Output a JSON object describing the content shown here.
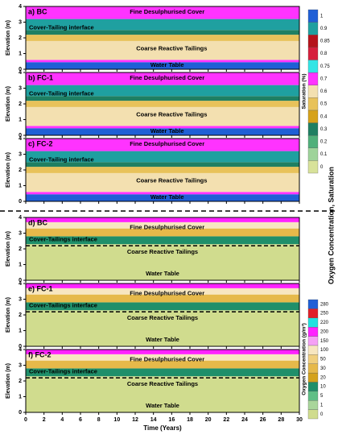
{
  "chart_data": [
    {
      "type": "band",
      "ylabel": "Elevation (m)",
      "panel_label": "a) BC",
      "cover_label": "Fine Desulphurised Cover",
      "interface_label": "Cover-Tailing interface",
      "tailings_label": "Coarse Reactive Tailings",
      "water_table_label": "Water Table",
      "colorbar": 0,
      "xlim": [
        0,
        30
      ],
      "xticks": [
        0,
        2,
        4,
        6,
        8,
        10,
        12,
        14,
        16,
        18,
        20,
        22,
        24,
        26,
        28,
        30
      ],
      "ylim": [
        0,
        4
      ],
      "yticks": [
        0,
        1,
        2,
        3,
        4
      ],
      "bands": [
        {
          "from": 0,
          "to": 0.45,
          "value": 1
        },
        {
          "from": 0.45,
          "to": 0.6,
          "value": 0.7
        },
        {
          "from": 0.6,
          "to": 1.8,
          "value": 0.6
        },
        {
          "from": 1.8,
          "to": 2.2,
          "value": 0.5
        },
        {
          "from": 2.2,
          "to": 2.5,
          "value": 0.3
        },
        {
          "from": 2.5,
          "to": 3.2,
          "value": 0.9
        },
        {
          "from": 3.2,
          "to": 4,
          "value": 0.7
        }
      ]
    },
    {
      "type": "band",
      "ylabel": "Elevation (m)",
      "panel_label": "b) FC-1",
      "cover_label": "Fine Desulphurised Cover",
      "interface_label": "Cover-Tailing interface",
      "tailings_label": "Coarse Reactive Tailings",
      "water_table_label": "Water Table",
      "colorbar": 0,
      "xlim": [
        0,
        30
      ],
      "xticks": [
        0,
        2,
        4,
        6,
        8,
        10,
        12,
        14,
        16,
        18,
        20,
        22,
        24,
        26,
        28,
        30
      ],
      "ylim": [
        0,
        4
      ],
      "yticks": [
        0,
        1,
        2,
        3,
        4
      ],
      "bands": [
        {
          "from": 0,
          "to": 0.45,
          "value": 1
        },
        {
          "from": 0.45,
          "to": 0.6,
          "value": 0.7
        },
        {
          "from": 0.6,
          "to": 1.8,
          "value": 0.6
        },
        {
          "from": 1.8,
          "to": 2.2,
          "value": 0.5
        },
        {
          "from": 2.2,
          "to": 2.5,
          "value": 0.3
        },
        {
          "from": 2.5,
          "to": 3.2,
          "value": 0.9
        },
        {
          "from": 3.2,
          "to": 4,
          "value": 0.7
        }
      ]
    },
    {
      "type": "band",
      "ylabel": "Elevation (m)",
      "panel_label": "c) FC-2",
      "cover_label": "Fine Desulphurised Cover",
      "interface_label": "Cover-Tailing interface",
      "tailings_label": "Coarse Reactive Tailings",
      "water_table_label": "Water Table",
      "colorbar": 0,
      "xlim": [
        0,
        30
      ],
      "xticks": [
        0,
        2,
        4,
        6,
        8,
        10,
        12,
        14,
        16,
        18,
        20,
        22,
        24,
        26,
        28,
        30
      ],
      "ylim": [
        0,
        4
      ],
      "yticks": [
        0,
        1,
        2,
        3,
        4
      ],
      "bands": [
        {
          "from": 0,
          "to": 0.45,
          "value": 1
        },
        {
          "from": 0.45,
          "to": 0.6,
          "value": 0.7
        },
        {
          "from": 0.6,
          "to": 1.8,
          "value": 0.6
        },
        {
          "from": 1.8,
          "to": 2.2,
          "value": 0.5
        },
        {
          "from": 2.2,
          "to": 2.5,
          "value": 0.3
        },
        {
          "from": 2.5,
          "to": 3.2,
          "value": 0.9
        },
        {
          "from": 3.2,
          "to": 4,
          "value": 0.7
        }
      ]
    },
    {
      "type": "band",
      "ylabel": "Elevation (m)",
      "panel_label": "d) BC",
      "cover_label": "Fine Desulphurised Cover",
      "interface_label": "Cover-Tailings interface",
      "tailings_label": "Coarse Reactive Tailings",
      "water_table_label": "Water Table",
      "colorbar": 1,
      "interface_line": 2.2,
      "xlim": [
        0,
        30
      ],
      "xticks": [
        0,
        2,
        4,
        6,
        8,
        10,
        12,
        14,
        16,
        18,
        20,
        22,
        24,
        26,
        28,
        30
      ],
      "ylim": [
        0,
        4
      ],
      "yticks": [
        0,
        1,
        2,
        3,
        4
      ],
      "bands": [
        {
          "from": 0,
          "to": 2.3,
          "value": 0
        },
        {
          "from": 2.3,
          "to": 2.8,
          "value": 10
        },
        {
          "from": 2.8,
          "to": 3.3,
          "value": 30
        },
        {
          "from": 3.3,
          "to": 3.7,
          "value": 100
        },
        {
          "from": 3.7,
          "to": 4,
          "value": 200
        }
      ]
    },
    {
      "type": "band",
      "ylabel": "Elevation (m)",
      "panel_label": "e) FC-1",
      "cover_label": "Fine Desulphurised Cover",
      "interface_label": "Cover-Tailings interface",
      "tailings_label": "Coarse Reactive Tailings",
      "water_table_label": "Water Table",
      "colorbar": 1,
      "interface_line": 2.2,
      "xlim": [
        0,
        30
      ],
      "xticks": [
        0,
        2,
        4,
        6,
        8,
        10,
        12,
        14,
        16,
        18,
        20,
        22,
        24,
        26,
        28,
        30
      ],
      "ylim": [
        0,
        4
      ],
      "yticks": [
        0,
        1,
        2,
        3,
        4
      ],
      "bands": [
        {
          "from": 0,
          "to": 2.3,
          "value": 0
        },
        {
          "from": 2.3,
          "to": 2.8,
          "value": 10
        },
        {
          "from": 2.8,
          "to": 3.3,
          "value": 30
        },
        {
          "from": 3.3,
          "to": 3.7,
          "value": 100
        },
        {
          "from": 3.7,
          "to": 4,
          "value": 200
        }
      ]
    },
    {
      "type": "band",
      "ylabel": "Elevation (m)",
      "panel_label": "f) FC-2",
      "cover_label": "Fine Desulphurised Cover",
      "interface_label": "Cover-Tailings interface",
      "tailings_label": "Coarse Reactive Tailings",
      "water_table_label": "Water Table",
      "colorbar": 1,
      "interface_line": 2.2,
      "xlabel": "Time (Years)",
      "xlim": [
        0,
        30
      ],
      "xticks": [
        0,
        2,
        4,
        6,
        8,
        10,
        12,
        14,
        16,
        18,
        20,
        22,
        24,
        26,
        28,
        30
      ],
      "ylim": [
        0,
        4
      ],
      "yticks": [
        0,
        1,
        2,
        3,
        4
      ],
      "bands": [
        {
          "from": 0,
          "to": 2.3,
          "value": 0
        },
        {
          "from": 2.3,
          "to": 2.8,
          "value": 10
        },
        {
          "from": 2.8,
          "to": 3.3,
          "value": 30
        },
        {
          "from": 3.3,
          "to": 3.7,
          "value": 100
        },
        {
          "from": 3.7,
          "to": 4,
          "value": 200
        }
      ]
    }
  ],
  "colorbars": [
    {
      "title": "Saturation (%)",
      "levels": [
        0,
        0.1,
        0.2,
        0.3,
        0.4,
        0.5,
        0.6,
        0.7,
        0.75,
        0.8,
        0.85,
        0.9,
        1
      ],
      "colors": [
        "#d8e29a",
        "#9ed39a",
        "#4fb07a",
        "#1f7f62",
        "#d6a21a",
        "#e8c25a",
        "#f3e0b0",
        "#ff33ff",
        "#33e5e5",
        "#d61f3d",
        "#b5121b",
        "#1fa0a0",
        "#1f5fd6"
      ]
    },
    {
      "title": "Oxygen Concentration (g/m³)",
      "levels": [
        0,
        1,
        5,
        10,
        20,
        30,
        50,
        100,
        150,
        200,
        220,
        250,
        280
      ],
      "colors": [
        "#d0dc8e",
        "#a9d59b",
        "#5fbf86",
        "#1f8f6a",
        "#d4a21c",
        "#e6b94a",
        "#f0cf7e",
        "#f7e6c0",
        "#f5a0f5",
        "#ff22ff",
        "#22e0e0",
        "#e0202a",
        "#1f5fd6"
      ]
    }
  ],
  "side_label": "Oxygen Concentration, Saturation"
}
